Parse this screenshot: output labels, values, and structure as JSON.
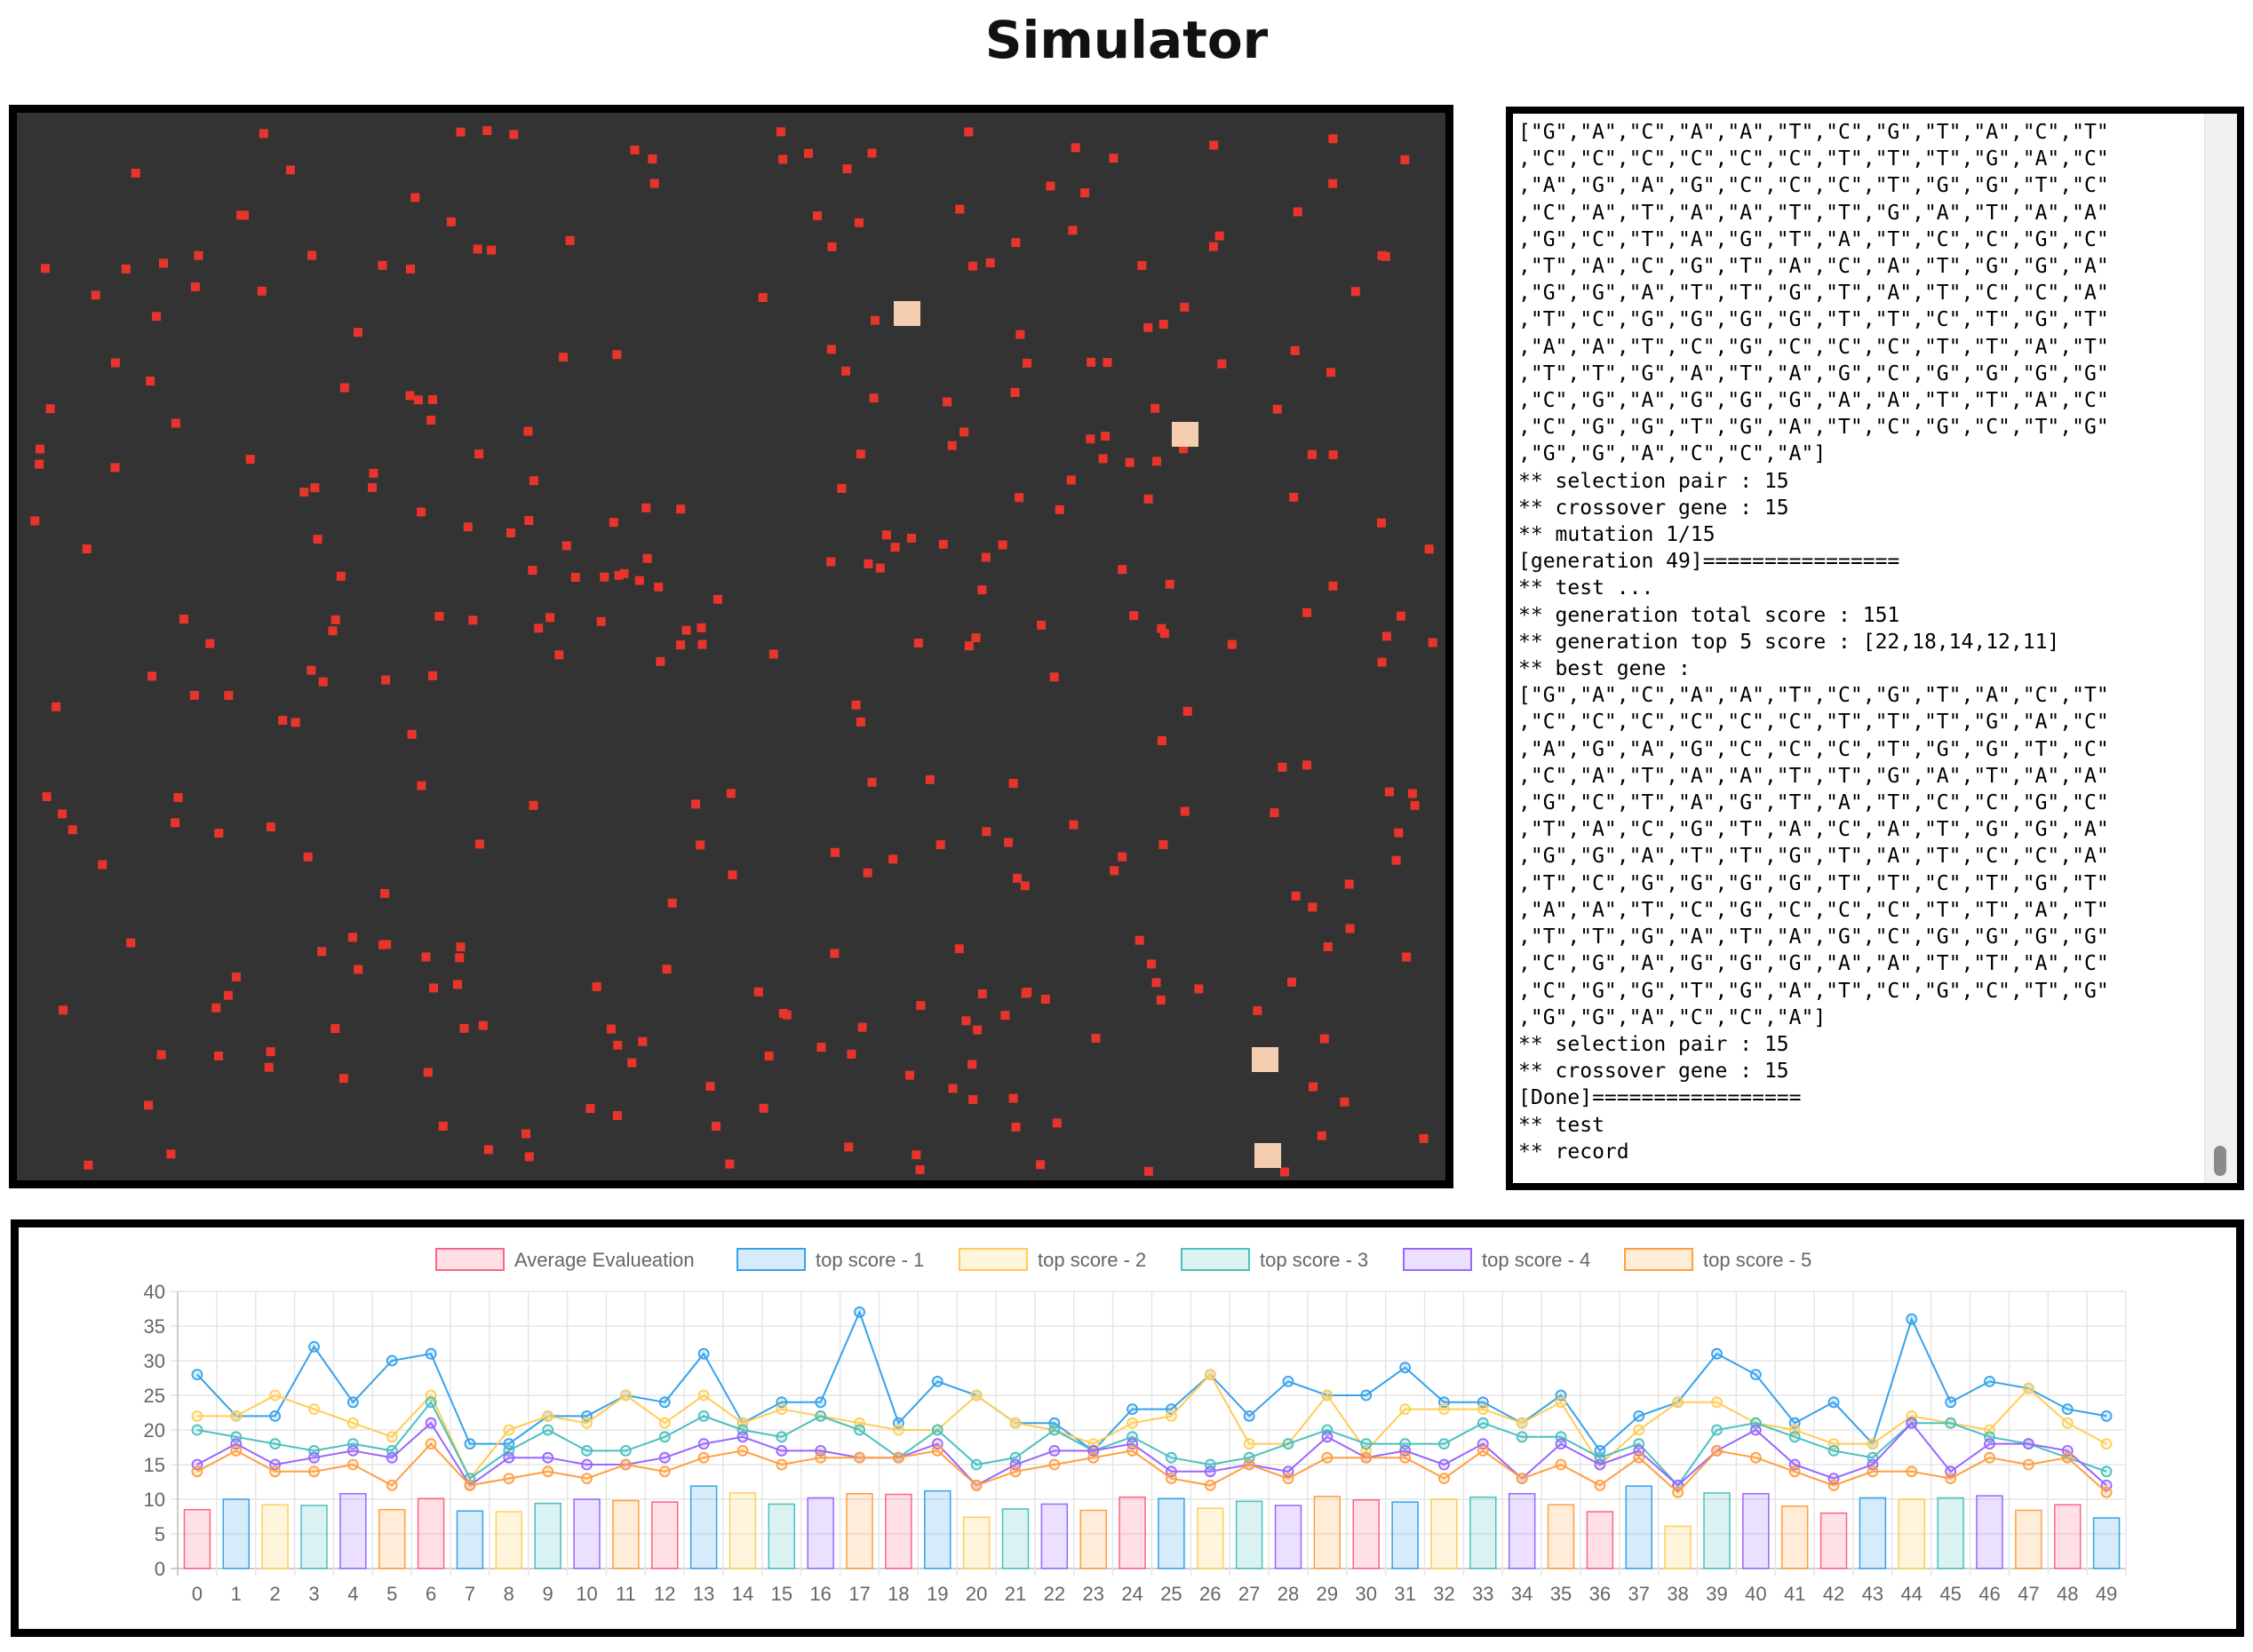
{
  "page": {
    "title": "Simulator"
  },
  "simulator": {
    "background": "#333333",
    "dot_color": "#e8352b",
    "agent_color": "#f5cdb0"
  },
  "log": {
    "lines": [
      "[\"G\",\"A\",\"C\",\"A\",\"A\",\"T\",\"C\",\"G\",\"T\",\"A\",\"C\",\"T\"",
      ",\"C\",\"C\",\"C\",\"C\",\"C\",\"C\",\"T\",\"T\",\"T\",\"G\",\"A\",\"C\"",
      ",\"A\",\"G\",\"A\",\"G\",\"C\",\"C\",\"C\",\"T\",\"G\",\"G\",\"T\",\"C\"",
      ",\"C\",\"A\",\"T\",\"A\",\"A\",\"T\",\"T\",\"G\",\"A\",\"T\",\"A\",\"A\"",
      ",\"G\",\"C\",\"T\",\"A\",\"G\",\"T\",\"A\",\"T\",\"C\",\"C\",\"G\",\"C\"",
      ",\"T\",\"A\",\"C\",\"G\",\"T\",\"A\",\"C\",\"A\",\"T\",\"G\",\"G\",\"A\"",
      ",\"G\",\"G\",\"A\",\"T\",\"T\",\"G\",\"T\",\"A\",\"T\",\"C\",\"C\",\"A\"",
      ",\"T\",\"C\",\"G\",\"G\",\"G\",\"G\",\"T\",\"T\",\"C\",\"T\",\"G\",\"T\"",
      ",\"A\",\"A\",\"T\",\"C\",\"G\",\"C\",\"C\",\"C\",\"T\",\"T\",\"A\",\"T\"",
      ",\"T\",\"T\",\"G\",\"A\",\"T\",\"A\",\"G\",\"C\",\"G\",\"G\",\"G\",\"G\"",
      ",\"C\",\"G\",\"A\",\"G\",\"G\",\"G\",\"A\",\"A\",\"T\",\"T\",\"A\",\"C\"",
      ",\"C\",\"G\",\"G\",\"T\",\"G\",\"A\",\"T\",\"C\",\"G\",\"C\",\"T\",\"G\"",
      ",\"G\",\"G\",\"A\",\"C\",\"C\",\"A\"]",
      "** selection pair : 15",
      "** crossover gene : 15",
      "** mutation 1/15",
      "[generation 49]================",
      "** test ...",
      "** generation total score : 151",
      "** generation top 5 score : [22,18,14,12,11]",
      "** best gene :",
      "[\"G\",\"A\",\"C\",\"A\",\"A\",\"T\",\"C\",\"G\",\"T\",\"A\",\"C\",\"T\"",
      ",\"C\",\"C\",\"C\",\"C\",\"C\",\"C\",\"T\",\"T\",\"T\",\"G\",\"A\",\"C\"",
      ",\"A\",\"G\",\"A\",\"G\",\"C\",\"C\",\"C\",\"T\",\"G\",\"G\",\"T\",\"C\"",
      ",\"C\",\"A\",\"T\",\"A\",\"A\",\"T\",\"T\",\"G\",\"A\",\"T\",\"A\",\"A\"",
      ",\"G\",\"C\",\"T\",\"A\",\"G\",\"T\",\"A\",\"T\",\"C\",\"C\",\"G\",\"C\"",
      ",\"T\",\"A\",\"C\",\"G\",\"T\",\"A\",\"C\",\"A\",\"T\",\"G\",\"G\",\"A\"",
      ",\"G\",\"G\",\"A\",\"T\",\"T\",\"G\",\"T\",\"A\",\"T\",\"C\",\"C\",\"A\"",
      ",\"T\",\"C\",\"G\",\"G\",\"G\",\"G\",\"T\",\"T\",\"C\",\"T\",\"G\",\"T\"",
      ",\"A\",\"A\",\"T\",\"C\",\"G\",\"C\",\"C\",\"C\",\"T\",\"T\",\"A\",\"T\"",
      ",\"T\",\"T\",\"G\",\"A\",\"T\",\"A\",\"G\",\"C\",\"G\",\"G\",\"G\",\"G\"",
      ",\"C\",\"G\",\"A\",\"G\",\"G\",\"G\",\"A\",\"A\",\"T\",\"T\",\"A\",\"C\"",
      ",\"C\",\"G\",\"G\",\"T\",\"G\",\"A\",\"T\",\"C\",\"G\",\"C\",\"T\",\"G\"",
      ",\"G\",\"G\",\"A\",\"C\",\"C\",\"A\"]",
      "** selection pair : 15",
      "** crossover gene : 15",
      "[Done]=================",
      "** test",
      "** record"
    ]
  },
  "chart_data": {
    "type": "bar",
    "title": "",
    "xlabel": "",
    "ylabel": "",
    "ylim": [
      0,
      40
    ],
    "yticks": [
      0,
      5,
      10,
      15,
      20,
      25,
      30,
      35,
      40
    ],
    "categories": [
      "0",
      "1",
      "2",
      "3",
      "4",
      "5",
      "6",
      "7",
      "8",
      "9",
      "10",
      "11",
      "12",
      "13",
      "14",
      "15",
      "16",
      "17",
      "18",
      "19",
      "20",
      "21",
      "22",
      "23",
      "24",
      "25",
      "26",
      "27",
      "28",
      "29",
      "30",
      "31",
      "32",
      "33",
      "34",
      "35",
      "36",
      "37",
      "38",
      "39",
      "40",
      "41",
      "42",
      "43",
      "44",
      "45",
      "46",
      "47",
      "48",
      "49"
    ],
    "legend": [
      "Average Evalueation",
      "top score - 1",
      "top score - 2",
      "top score - 3",
      "top score - 4",
      "top score - 5"
    ],
    "colors": [
      "#ff6384",
      "#36a2eb",
      "#ffcd56",
      "#4bc0c0",
      "#9966ff",
      "#ff9f40"
    ],
    "bars": {
      "name": "Average Evalueation",
      "values": [
        8.5,
        10,
        9.2,
        9.1,
        10.8,
        8.5,
        10.1,
        8.3,
        8.2,
        9.4,
        10,
        9.8,
        9.6,
        11.9,
        10.9,
        9.3,
        10.2,
        10.8,
        10.7,
        11.2,
        7.4,
        8.6,
        9.3,
        8.4,
        10.3,
        10.1,
        8.7,
        9.7,
        9.1,
        10.4,
        9.9,
        9.6,
        10,
        10.3,
        10.8,
        9.2,
        8.2,
        11.9,
        6.1,
        10.9,
        10.8,
        9,
        8,
        10.2,
        10,
        10.2,
        10.5,
        8.4,
        9.2,
        7.3
      ]
    },
    "series": [
      {
        "name": "top score - 1",
        "values": [
          28,
          22,
          22,
          32,
          24,
          30,
          31,
          18,
          18,
          22,
          22,
          25,
          24,
          31,
          21,
          24,
          24,
          37,
          21,
          27,
          25,
          21,
          21,
          17,
          23,
          23,
          28,
          22,
          27,
          25,
          25,
          29,
          24,
          24,
          21,
          25,
          17,
          22,
          24,
          31,
          28,
          21,
          24,
          18,
          36,
          24,
          27,
          26,
          23,
          22
        ]
      },
      {
        "name": "top score - 2",
        "values": [
          22,
          22,
          25,
          23,
          21,
          19,
          25,
          13,
          20,
          22,
          21,
          25,
          21,
          25,
          21,
          23,
          22,
          21,
          20,
          20,
          25,
          21,
          20,
          18,
          21,
          22,
          28,
          18,
          18,
          25,
          17,
          23,
          23,
          23,
          21,
          24,
          15,
          20,
          24,
          24,
          21,
          20,
          18,
          18,
          22,
          21,
          20,
          26,
          21,
          18
        ]
      },
      {
        "name": "top score - 3",
        "values": [
          20,
          19,
          18,
          17,
          18,
          17,
          24,
          13,
          17,
          20,
          17,
          17,
          19,
          22,
          20,
          19,
          22,
          20,
          16,
          20,
          15,
          16,
          20,
          17,
          19,
          16,
          15,
          16,
          18,
          20,
          18,
          18,
          18,
          21,
          19,
          19,
          16,
          18,
          12,
          20,
          21,
          19,
          17,
          16,
          21,
          21,
          19,
          18,
          16,
          14
        ]
      },
      {
        "name": "top score - 4",
        "values": [
          15,
          18,
          15,
          16,
          17,
          16,
          21,
          12,
          16,
          16,
          15,
          15,
          16,
          18,
          19,
          17,
          17,
          16,
          16,
          18,
          12,
          15,
          17,
          17,
          18,
          14,
          14,
          15,
          14,
          19,
          16,
          17,
          15,
          18,
          13,
          18,
          15,
          17,
          12,
          17,
          20,
          15,
          13,
          15,
          21,
          14,
          18,
          18,
          17,
          12
        ]
      },
      {
        "name": "top score - 5",
        "values": [
          14,
          17,
          14,
          14,
          15,
          12,
          18,
          12,
          13,
          14,
          13,
          15,
          14,
          16,
          17,
          15,
          16,
          16,
          16,
          17,
          12,
          14,
          15,
          16,
          17,
          13,
          12,
          15,
          13,
          16,
          16,
          16,
          13,
          17,
          13,
          15,
          12,
          16,
          11,
          17,
          16,
          14,
          12,
          14,
          14,
          13,
          16,
          15,
          16,
          11
        ]
      }
    ]
  }
}
